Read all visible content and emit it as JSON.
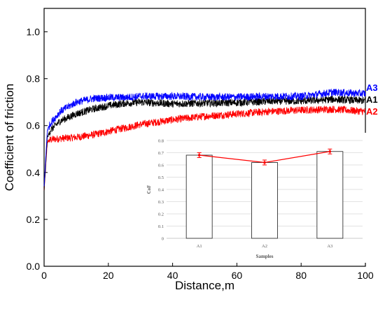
{
  "chart_data": [
    {
      "type": "line",
      "xlabel": "Distance,m",
      "ylabel": "Coefficient of friction",
      "xlim": [
        0,
        100
      ],
      "ylim": [
        0,
        1.1
      ],
      "xticks": [
        "0",
        "20",
        "40",
        "60",
        "80",
        "100"
      ],
      "yticks": [
        "0.0",
        "0.2",
        "0.4",
        "0.6",
        "0.8",
        "1.0"
      ],
      "series": [
        {
          "name": "A3",
          "color": "#0000ff",
          "x": [
            0,
            1,
            2,
            5,
            10,
            15,
            20,
            25,
            30,
            40,
            50,
            60,
            70,
            80,
            90,
            100
          ],
          "y": [
            0.34,
            0.58,
            0.61,
            0.66,
            0.7,
            0.715,
            0.72,
            0.72,
            0.725,
            0.725,
            0.722,
            0.722,
            0.725,
            0.725,
            0.742,
            0.736
          ]
        },
        {
          "name": "A1",
          "color": "#000000",
          "x": [
            0,
            1,
            2,
            5,
            10,
            15,
            20,
            25,
            30,
            40,
            50,
            60,
            70,
            80,
            90,
            100
          ],
          "y": [
            0.32,
            0.55,
            0.58,
            0.62,
            0.65,
            0.67,
            0.685,
            0.695,
            0.7,
            0.693,
            0.696,
            0.698,
            0.704,
            0.705,
            0.712,
            0.706
          ]
        },
        {
          "name": "A2",
          "color": "#ff0000",
          "x": [
            0,
            1,
            2,
            5,
            10,
            15,
            20,
            25,
            30,
            40,
            50,
            60,
            70,
            80,
            90,
            100
          ],
          "y": [
            0.32,
            0.53,
            0.54,
            0.545,
            0.55,
            0.56,
            0.575,
            0.59,
            0.605,
            0.625,
            0.64,
            0.65,
            0.66,
            0.666,
            0.67,
            0.66
          ]
        }
      ]
    },
    {
      "type": "bar",
      "xlabel": "Samples",
      "ylabel": "CoF",
      "ylim": [
        0,
        0.8
      ],
      "yticks": [
        "0",
        "0.1",
        "0.2",
        "0.3",
        "0.4",
        "0.5",
        "0.6",
        "0.7",
        "0.8"
      ],
      "categories": [
        "A1",
        "A2",
        "A3"
      ],
      "values": [
        0.68,
        0.62,
        0.71
      ],
      "errors": [
        0.02,
        0.02,
        0.02
      ],
      "bar_color": "#ffffff",
      "line_color": "#ff0000",
      "grid": true
    }
  ]
}
